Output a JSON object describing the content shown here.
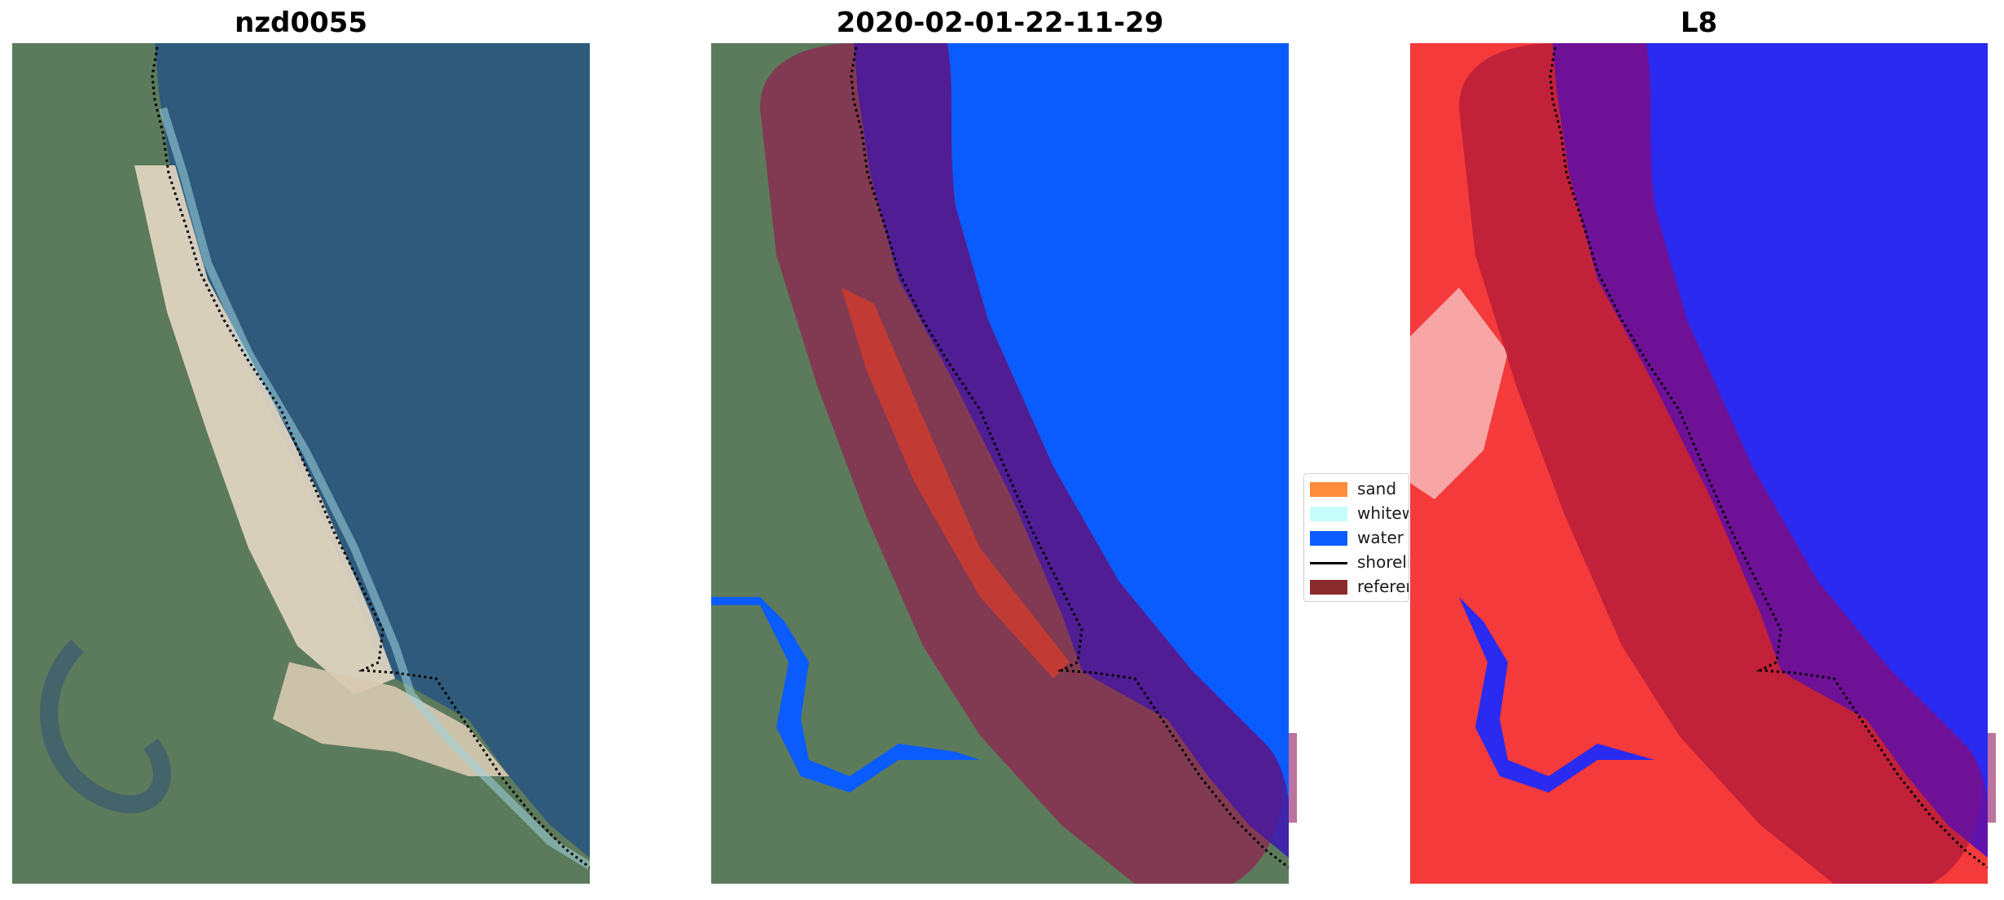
{
  "panels": [
    {
      "title": "nzd0055"
    },
    {
      "title": "2020-02-01-22-11-29"
    },
    {
      "title": "L8"
    }
  ],
  "legend": {
    "items": [
      {
        "label": "sand",
        "color": "#ff8c3a",
        "kind": "patch"
      },
      {
        "label": "whitewater",
        "color": "#c6fcfa",
        "kind": "patch"
      },
      {
        "label": "water",
        "color": "#0a5cff",
        "kind": "patch"
      },
      {
        "label": "shoreline",
        "color": "#000000",
        "kind": "line"
      },
      {
        "label": "reference shoreline buffer",
        "color": "#8b2a2a",
        "kind": "patch"
      }
    ]
  },
  "colors": {
    "ocean": "#2f5a7c",
    "land": "#5c7a5c",
    "beach": "#e6d8c4",
    "water_class": "#0a5cff",
    "buffer": "#8b2a50",
    "sand_class": "#cc3b2e",
    "index_water": "#2a2af0",
    "index_land": "#f43a3a"
  }
}
